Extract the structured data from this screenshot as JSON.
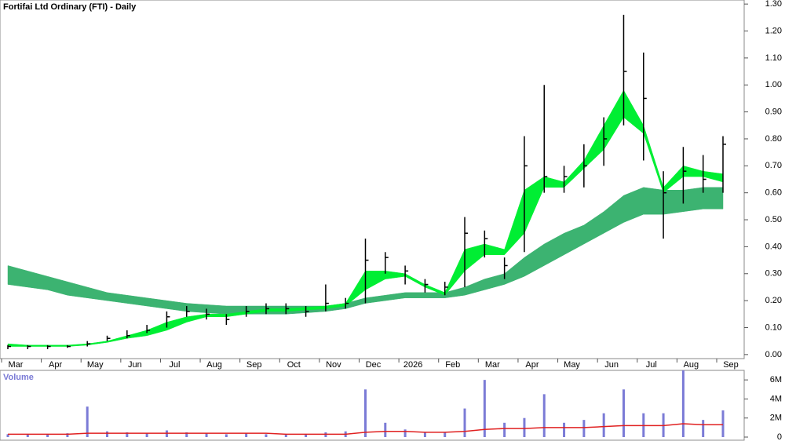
{
  "chart_data": [
    {
      "type": "ohlc",
      "title": "Fortifai Ltd Ordinary (FTI) - Daily",
      "categories": [
        "Mar",
        null,
        "Apr",
        null,
        "May",
        null,
        "Jun",
        null,
        "Jul",
        null,
        "Aug",
        null,
        "Sep",
        null,
        "Oct",
        null,
        "Nov",
        null,
        "Dec",
        null,
        "2026",
        null,
        "Feb",
        null,
        "Mar",
        null,
        "Apr",
        null,
        "May",
        null,
        "Jun",
        null,
        "Jul",
        null,
        "Aug",
        null,
        "Sep"
      ],
      "high": [
        0.035,
        0.035,
        0.035,
        0.035,
        0.05,
        0.07,
        0.09,
        0.11,
        0.16,
        0.18,
        0.17,
        0.15,
        0.18,
        0.19,
        0.19,
        0.18,
        0.26,
        0.21,
        0.43,
        0.38,
        0.33,
        0.28,
        0.27,
        0.51,
        0.46,
        0.36,
        0.81,
        1.0,
        0.7,
        0.78,
        0.88,
        1.26,
        1.12,
        0.68,
        0.77,
        0.74,
        0.81
      ],
      "low": [
        0.02,
        0.02,
        0.02,
        0.025,
        0.03,
        0.05,
        0.06,
        0.08,
        0.1,
        0.14,
        0.13,
        0.11,
        0.14,
        0.15,
        0.15,
        0.14,
        0.16,
        0.17,
        0.19,
        0.3,
        0.26,
        0.23,
        0.22,
        0.25,
        0.36,
        0.28,
        0.38,
        0.6,
        0.6,
        0.62,
        0.7,
        0.85,
        0.72,
        0.43,
        0.56,
        0.6,
        0.6
      ],
      "close": [
        0.03,
        0.03,
        0.03,
        0.03,
        0.04,
        0.06,
        0.07,
        0.09,
        0.14,
        0.16,
        0.15,
        0.13,
        0.16,
        0.17,
        0.17,
        0.16,
        0.19,
        0.19,
        0.35,
        0.36,
        0.31,
        0.26,
        0.25,
        0.45,
        0.43,
        0.33,
        0.7,
        0.66,
        0.66,
        0.7,
        0.8,
        1.05,
        0.95,
        0.6,
        0.68,
        0.65,
        0.78
      ],
      "color": "#000000",
      "bands": [
        {
          "color": "#3cb371",
          "upper": [
            0.33,
            0.31,
            0.29,
            0.27,
            0.25,
            0.23,
            0.22,
            0.21,
            0.2,
            0.19,
            0.185,
            0.18,
            0.18,
            0.18,
            0.18,
            0.18,
            0.18,
            0.19,
            0.21,
            0.22,
            0.23,
            0.23,
            0.23,
            0.25,
            0.28,
            0.3,
            0.36,
            0.41,
            0.45,
            0.48,
            0.53,
            0.59,
            0.62,
            0.61,
            0.61,
            0.62,
            0.62
          ],
          "lower": [
            0.26,
            0.25,
            0.24,
            0.22,
            0.21,
            0.2,
            0.19,
            0.18,
            0.17,
            0.16,
            0.155,
            0.15,
            0.15,
            0.15,
            0.15,
            0.155,
            0.16,
            0.17,
            0.19,
            0.2,
            0.21,
            0.21,
            0.21,
            0.22,
            0.24,
            0.26,
            0.29,
            0.33,
            0.37,
            0.41,
            0.45,
            0.49,
            0.52,
            0.52,
            0.53,
            0.54,
            0.54
          ]
        },
        {
          "color": "#00ee33",
          "upper": [
            0.04,
            0.035,
            0.035,
            0.035,
            0.04,
            0.05,
            0.07,
            0.09,
            0.12,
            0.14,
            0.15,
            0.15,
            0.16,
            0.17,
            0.17,
            0.175,
            0.18,
            0.19,
            0.31,
            0.31,
            0.3,
            0.26,
            0.23,
            0.39,
            0.41,
            0.39,
            0.61,
            0.66,
            0.64,
            0.72,
            0.85,
            0.98,
            0.85,
            0.62,
            0.7,
            0.68,
            0.67
          ],
          "lower": [
            0.03,
            0.03,
            0.03,
            0.03,
            0.035,
            0.045,
            0.06,
            0.07,
            0.09,
            0.12,
            0.14,
            0.14,
            0.15,
            0.16,
            0.16,
            0.165,
            0.17,
            0.18,
            0.24,
            0.28,
            0.29,
            0.25,
            0.22,
            0.31,
            0.37,
            0.37,
            0.45,
            0.62,
            0.62,
            0.69,
            0.76,
            0.88,
            0.82,
            0.6,
            0.66,
            0.66,
            0.64
          ]
        }
      ],
      "ylim": [
        -0.015,
        1.315
      ],
      "yticks": [
        {
          "value": 0,
          "label": "0.00"
        },
        {
          "value": 0.1,
          "label": "0.10"
        },
        {
          "value": 0.2,
          "label": "0.20"
        },
        {
          "value": 0.3,
          "label": "0.30"
        },
        {
          "value": 0.4,
          "label": "0.40"
        },
        {
          "value": 0.5,
          "label": "0.50"
        },
        {
          "value": 0.6,
          "label": "0.60"
        },
        {
          "value": 0.7,
          "label": "0.70"
        },
        {
          "value": 0.8,
          "label": "0.80"
        },
        {
          "value": 0.9,
          "label": "0.90"
        },
        {
          "value": 1.0,
          "label": "1.00"
        },
        {
          "value": 1.1,
          "label": "1.10"
        },
        {
          "value": 1.2,
          "label": "1.20"
        },
        {
          "value": 1.3,
          "label": "1.30"
        }
      ]
    },
    {
      "type": "bar",
      "title": "Volume",
      "values": [
        300000,
        300000,
        300000,
        400000,
        3200000,
        600000,
        500000,
        400000,
        700000,
        500000,
        400000,
        300000,
        400000,
        300000,
        300000,
        300000,
        500000,
        600000,
        5000000,
        1500000,
        800000,
        500000,
        500000,
        3000000,
        6000000,
        1500000,
        2000000,
        4500000,
        1500000,
        1800000,
        2500000,
        5000000,
        2500000,
        2500000,
        7000000,
        1800000,
        2800000
      ],
      "color": "#7b7bd6",
      "average": {
        "color": "#e02020",
        "values": [
          300000,
          300000,
          300000,
          300000,
          400000,
          400000,
          400000,
          400000,
          400000,
          400000,
          400000,
          400000,
          400000,
          400000,
          300000,
          300000,
          300000,
          300000,
          500000,
          600000,
          600000,
          500000,
          500000,
          600000,
          800000,
          900000,
          900000,
          1000000,
          1000000,
          1000000,
          1100000,
          1200000,
          1200000,
          1200000,
          1400000,
          1300000,
          1300000
        ]
      },
      "ylim": [
        0,
        7000000
      ],
      "yticks": [
        0,
        {
          "value": 2000000,
          "label": "2M"
        },
        {
          "value": 4000000,
          "label": "4M"
        },
        {
          "value": 6000000,
          "label": "6M"
        }
      ]
    }
  ]
}
